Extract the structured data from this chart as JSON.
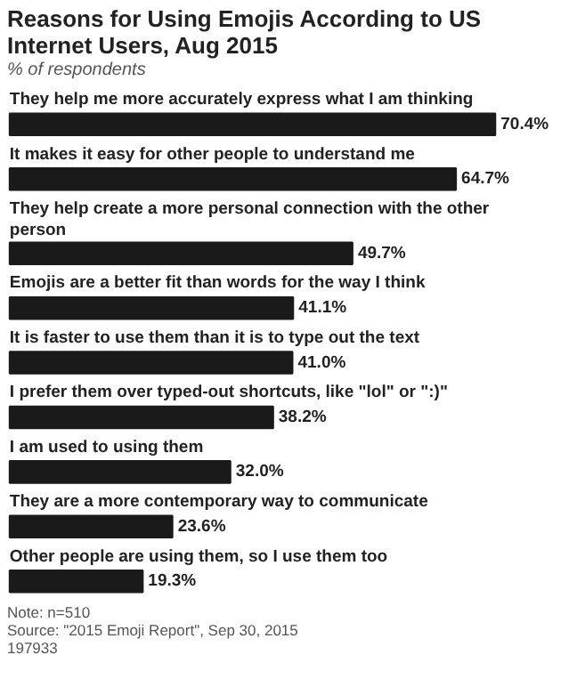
{
  "chart_data": {
    "type": "bar",
    "orientation": "horizontal",
    "title": "Reasons for Using Emojis According to US Internet Users, Aug 2015",
    "subtitle": "% of respondents",
    "categories": [
      "They help me more accurately express what I am thinking",
      "It makes it easy for other people to understand me",
      "They help create a more personal connection with the other person",
      "Emojis are a better fit than words for the way I think",
      "It is faster to use them than it is to type out the text",
      "I prefer them over typed-out shortcuts, like \"lol\" or \":)\"",
      "I am used to using them",
      "They are a more contemporary way to communicate",
      "Other people are using them, so I use them too"
    ],
    "values": [
      70.4,
      64.7,
      49.7,
      41.1,
      41.0,
      38.2,
      32.0,
      23.6,
      19.3
    ],
    "value_labels": [
      "70.4%",
      "64.7%",
      "49.7%",
      "41.1%",
      "41.0%",
      "38.2%",
      "32.0%",
      "23.6%",
      "19.3%"
    ],
    "color": "#1a1a1a",
    "annotations": [
      "Note: n=510",
      "Source: \"2015 Emoji Report\", Sep 30, 2015",
      "197933"
    ]
  }
}
